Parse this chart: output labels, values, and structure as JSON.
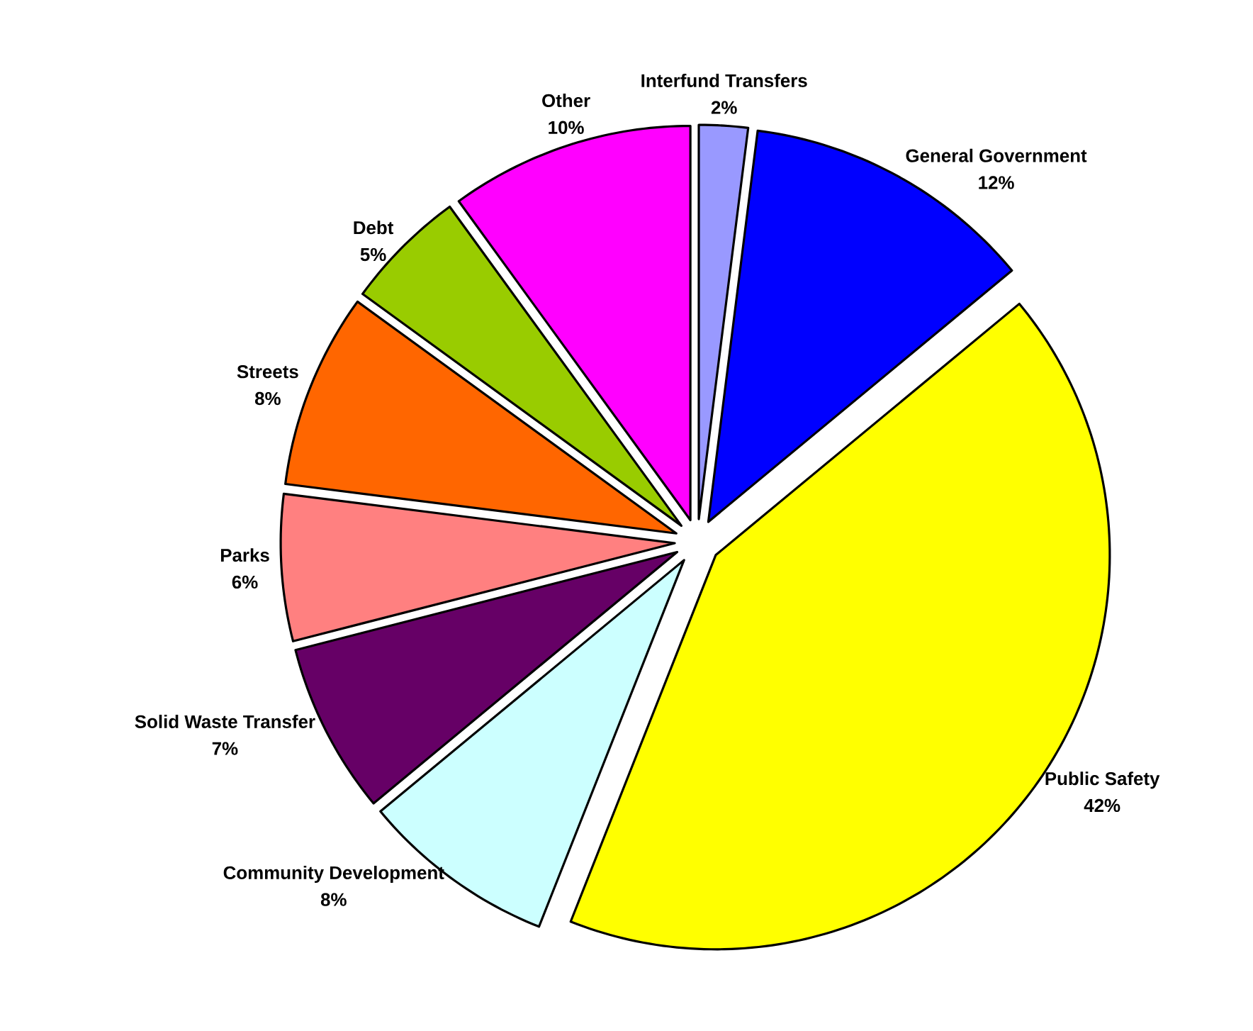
{
  "chart_data": {
    "type": "pie",
    "categories": [
      "Interfund Transfers",
      "General Government",
      "Public Safety",
      "Community Development",
      "Solid Waste Transfer",
      "Parks",
      "Streets",
      "Debt",
      "Other"
    ],
    "values": [
      2,
      12,
      42,
      8,
      7,
      6,
      8,
      5,
      10
    ],
    "colors": [
      "#9999ff",
      "#0000ff",
      "#ffff00",
      "#ccffff",
      "#660066",
      "#ff8080",
      "#ff6600",
      "#99cc00",
      "#ff00ff"
    ],
    "value_labels": [
      "2%",
      "12%",
      "42%",
      "8%",
      "7%",
      "6%",
      "8%",
      "5%",
      "10%"
    ]
  }
}
